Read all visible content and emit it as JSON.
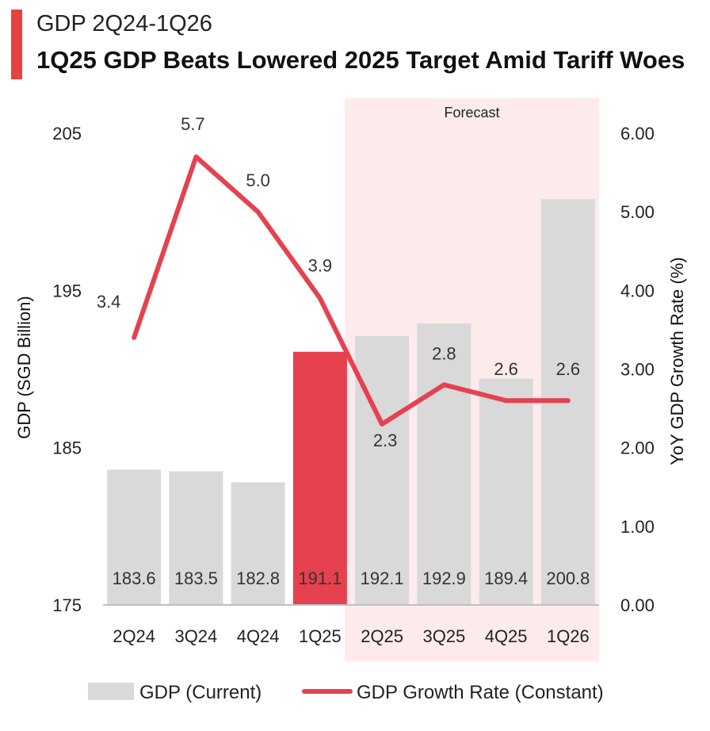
{
  "header": {
    "title": "GDP 2Q24-1Q26",
    "subtitle": "1Q25 GDP Beats Lowered 2025 Target Amid Tariff Woes"
  },
  "colors": {
    "accent": "#e8423f",
    "bar": "#d9d9d9",
    "bar_highlight": "#e5414f",
    "line": "#e5414f",
    "forecast_bg": "#fdebec"
  },
  "chart_data": {
    "type": "bar",
    "categories": [
      "2Q24",
      "3Q24",
      "4Q24",
      "1Q25",
      "2Q25",
      "3Q25",
      "4Q25",
      "1Q26"
    ],
    "series": [
      {
        "name": "GDP (Current)",
        "type": "bar",
        "axis": "left",
        "values": [
          183.6,
          183.5,
          182.8,
          191.1,
          192.1,
          192.9,
          189.4,
          200.8
        ],
        "labels": [
          "183.6",
          "183.5",
          "182.8",
          "191.1",
          "192.1",
          "192.9",
          "189.4",
          "200.8"
        ],
        "highlight_index": 3
      },
      {
        "name": "GDP Growth Rate (Constant)",
        "type": "line",
        "axis": "right",
        "values": [
          3.4,
          5.7,
          5.0,
          3.9,
          2.3,
          2.8,
          2.6,
          2.6
        ],
        "labels": [
          "3.4",
          "5.7",
          "5.0",
          "3.9",
          "2.3",
          "2.8",
          "2.6",
          "2.6"
        ]
      }
    ],
    "ylabel": "GDP (SGD Billion)",
    "ylim": [
      175,
      205
    ],
    "yticks": [
      "175",
      "185",
      "195",
      "205"
    ],
    "y2label": "YoY GDP Growth Rate (%)",
    "y2lim": [
      0,
      6
    ],
    "y2ticks": [
      "0.00",
      "1.00",
      "2.00",
      "3.00",
      "4.00",
      "5.00",
      "6.00"
    ],
    "forecast": {
      "label": "Forecast",
      "from_category": "2Q25",
      "to_category": "1Q26"
    },
    "legend_position": "bottom",
    "grid": false
  }
}
